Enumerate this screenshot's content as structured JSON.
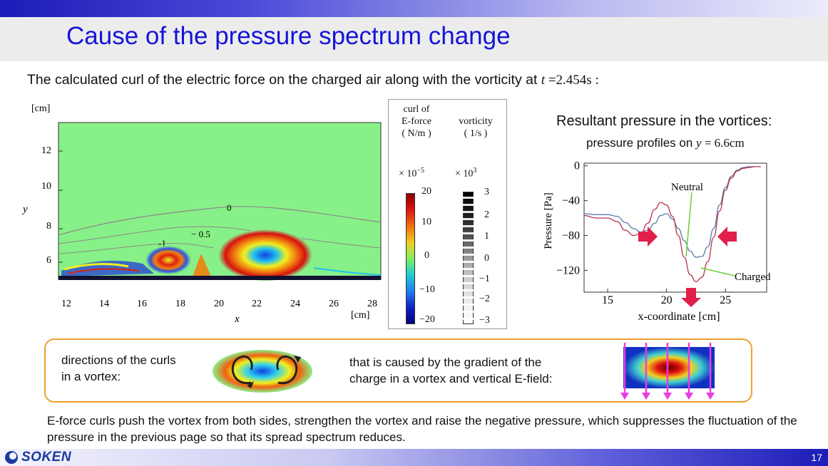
{
  "slide": {
    "title": "Cause of the pressure spectrum change",
    "intro_text": "The calculated curl of the electric force on the charged air along with the vorticity at ",
    "intro_time_var": "t",
    "intro_time_value": " =2.454s :",
    "page_number": "17",
    "logo_text": "SOKEN"
  },
  "vortex_plot": {
    "y_unit": "[cm]",
    "x_unit": "[cm]",
    "x_label": "x",
    "y_label": "y",
    "x_ticks": [
      "12",
      "14",
      "16",
      "18",
      "20",
      "22",
      "24",
      "26",
      "28"
    ],
    "y_ticks": [
      "12",
      "10",
      "8",
      "6"
    ],
    "contour_labels": [
      "0",
      "-1",
      "− 0.5"
    ]
  },
  "colorbar": {
    "curl_title_line1": "curl of",
    "curl_title_line2": "E-force",
    "curl_title_line3": "( N/m )",
    "curl_scale_base": "× 10",
    "curl_scale_exp": "−5",
    "curl_ticks": [
      "20",
      "10",
      "0",
      "−10",
      "−20"
    ],
    "vort_title_line1": "vorticity",
    "vort_title_line2": "( 1/s )",
    "vort_scale_base": "× 10",
    "vort_scale_exp": "3",
    "vort_ticks": [
      "3",
      "2",
      "1",
      "0",
      "−1",
      "−2",
      "−3"
    ]
  },
  "pressure_panel": {
    "title": "Resultant pressure in the vortices:",
    "subtitle_prefix": "pressure profiles on ",
    "subtitle_var": "y",
    "subtitle_value": " = 6.6cm"
  },
  "chart_data": {
    "type": "line",
    "title": "",
    "xlabel": "x-coordinate [cm]",
    "ylabel": "Pressure [Pa]",
    "xlim": [
      13,
      28.5
    ],
    "ylim": [
      -145,
      3
    ],
    "x_ticks": [
      15,
      20,
      25
    ],
    "y_ticks": [
      0,
      -40,
      -80,
      -120
    ],
    "x_tick_labels": [
      "15",
      "20",
      "25"
    ],
    "y_tick_labels": [
      "0",
      "−40",
      "−80",
      "−120"
    ],
    "grid": false,
    "series": [
      {
        "name": "Neutral",
        "color": "#5a7fa8",
        "x": [
          13,
          14,
          15,
          15.8,
          16.5,
          17.2,
          17.8,
          18.4,
          19,
          19.5,
          20,
          20.5,
          21,
          21.5,
          22,
          22.5,
          23,
          23.5,
          24,
          24.5,
          25,
          25.5,
          26,
          26.5,
          27,
          27.5,
          28
        ],
        "y": [
          -55,
          -56,
          -56,
          -58,
          -65,
          -72,
          -76,
          -74,
          -66,
          -57,
          -55,
          -61,
          -72,
          -86,
          -98,
          -105,
          -104,
          -93,
          -72,
          -45,
          -25,
          -12,
          -5,
          -2,
          -1,
          -1,
          -1
        ]
      },
      {
        "name": "Charged",
        "color": "#b8354f",
        "x": [
          13,
          14,
          15,
          15.8,
          16.5,
          17.2,
          17.8,
          18.4,
          19,
          19.5,
          20,
          20.5,
          21,
          21.5,
          22,
          22.5,
          23,
          23.5,
          24,
          24.5,
          25,
          25.5,
          26,
          26.5,
          27,
          27.5,
          28
        ],
        "y": [
          -57,
          -60,
          -60,
          -64,
          -74,
          -80,
          -78,
          -66,
          -50,
          -42,
          -45,
          -58,
          -80,
          -105,
          -125,
          -133,
          -128,
          -110,
          -82,
          -52,
          -28,
          -14,
          -6,
          -3,
          -2,
          -1,
          -1
        ]
      }
    ],
    "annotations": [
      "Neutral",
      "Charged"
    ]
  },
  "explanation": {
    "curls_line1": "directions of the curls",
    "curls_line2": "in a vortex:",
    "cause_line1": "that is caused by the gradient of the",
    "cause_line2": "charge in a vortex and vertical E-field:"
  },
  "conclusion": {
    "text": "E-force curls push the vortex from both sides, strengthen the vortex and raise the negative pressure, which suppresses the fluctuation of the pressure in the previous page so that its spread spectrum reduces."
  },
  "colors": {
    "title": "#1515d8",
    "plot_background": "#88f088",
    "box_border": "#f0a030",
    "arrow": "#e0204a",
    "efield_arrow": "#e83ce0"
  }
}
